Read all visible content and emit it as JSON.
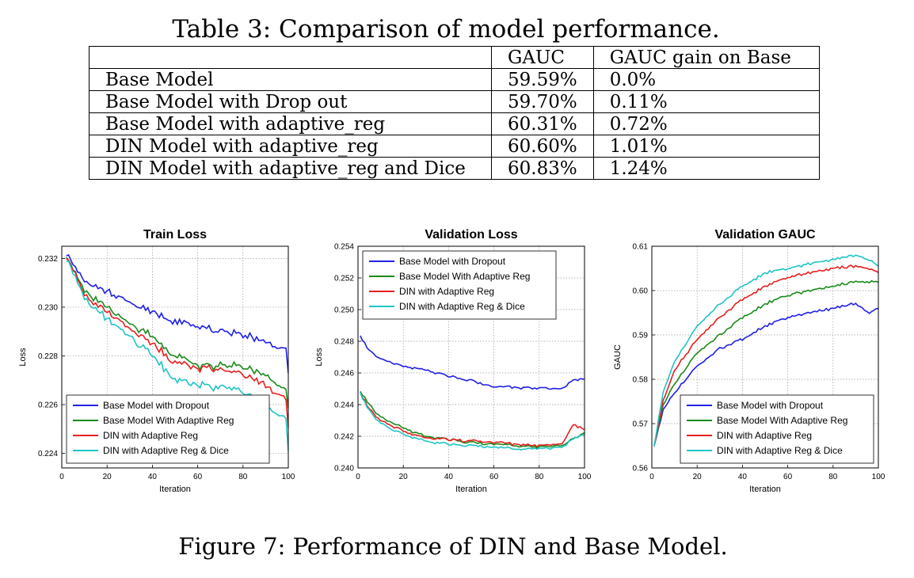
{
  "table": {
    "caption": "Table 3: Comparison of model performance.",
    "headers": [
      "",
      "GAUC",
      "GAUC gain on Base"
    ],
    "rows": [
      [
        "Base Model",
        "59.59%",
        "0.0%"
      ],
      [
        "Base Model with Drop out",
        "59.70%",
        "0.11%"
      ],
      [
        "Base Model with adaptive_reg",
        "60.31%",
        "0.72%"
      ],
      [
        "DIN Model with adaptive_reg",
        "60.60%",
        "1.01%"
      ],
      [
        "DIN Model with adaptive_reg and Dice",
        "60.83%",
        "1.24%"
      ]
    ]
  },
  "figure_caption": "Figure 7: Performance of DIN and Base Model.",
  "colors": {
    "base_dropout": "#1f1fe6",
    "base_adaptive": "#1a8a1a",
    "din_adaptive": "#e61f1f",
    "din_adaptive_dice": "#1fc4c4"
  },
  "chart_data": [
    {
      "type": "line",
      "title": "Train Loss",
      "xlabel": "Iteration",
      "ylabel": "Loss",
      "xlim": [
        0,
        100
      ],
      "ylim": [
        0.2234,
        0.2325
      ],
      "xticks": [
        "0",
        "20",
        "40",
        "60",
        "80",
        "100"
      ],
      "yticks": [
        "0.224",
        "0.226",
        "0.228",
        "0.230",
        "0.232"
      ],
      "grid": true,
      "legend_position": "lower-left",
      "series": [
        {
          "name": "Base Model with Dropout",
          "x": [
            2,
            10,
            20,
            30,
            40,
            50,
            60,
            70,
            80,
            90,
            99,
            100
          ],
          "y": [
            0.2322,
            0.2311,
            0.2306,
            0.2302,
            0.2298,
            0.2294,
            0.2292,
            0.229,
            0.2289,
            0.2286,
            0.2282,
            0.2272
          ]
        },
        {
          "name": "Base Model With Adaptive Reg",
          "x": [
            2,
            10,
            20,
            30,
            40,
            50,
            60,
            70,
            80,
            90,
            99,
            100
          ],
          "y": [
            0.2321,
            0.2307,
            0.23,
            0.2293,
            0.2288,
            0.228,
            0.2276,
            0.2276,
            0.2276,
            0.2272,
            0.2266,
            0.2258
          ]
        },
        {
          "name": "DIN with Adaptive Reg",
          "x": [
            2,
            10,
            20,
            30,
            40,
            50,
            60,
            70,
            80,
            90,
            99,
            100
          ],
          "y": [
            0.2321,
            0.2305,
            0.2298,
            0.2291,
            0.2285,
            0.2277,
            0.2275,
            0.2274,
            0.2273,
            0.2268,
            0.2262,
            0.225
          ]
        },
        {
          "name": "DIN with Adaptive Reg & Dice",
          "x": [
            2,
            10,
            20,
            30,
            40,
            50,
            60,
            70,
            80,
            90,
            99,
            100
          ],
          "y": [
            0.232,
            0.2304,
            0.2295,
            0.2288,
            0.228,
            0.227,
            0.2268,
            0.2267,
            0.2266,
            0.226,
            0.2254,
            0.224
          ]
        }
      ]
    },
    {
      "type": "line",
      "title": "Validation Loss",
      "xlabel": "Iteration",
      "ylabel": "Loss",
      "xlim": [
        0,
        100
      ],
      "ylim": [
        0.24,
        0.254
      ],
      "xticks": [
        "0",
        "20",
        "40",
        "60",
        "80",
        "100"
      ],
      "yticks": [
        "0.240",
        "0.242",
        "0.244",
        "0.246",
        "0.248",
        "0.250",
        "0.252",
        "0.254"
      ],
      "grid": true,
      "legend_position": "upper-left",
      "series": [
        {
          "name": "Base Model with Dropout",
          "x": [
            1,
            5,
            10,
            20,
            30,
            40,
            50,
            60,
            70,
            80,
            90,
            95,
            100
          ],
          "y": [
            0.2483,
            0.2474,
            0.2469,
            0.2464,
            0.2462,
            0.2458,
            0.2455,
            0.2451,
            0.2451,
            0.245,
            0.245,
            0.2455,
            0.2456
          ]
        },
        {
          "name": "Base Model With Adaptive Reg",
          "x": [
            1,
            5,
            10,
            20,
            30,
            40,
            50,
            60,
            70,
            80,
            90,
            95,
            100
          ],
          "y": [
            0.2448,
            0.244,
            0.2432,
            0.2425,
            0.242,
            0.2418,
            0.2416,
            0.2415,
            0.2414,
            0.2413,
            0.2414,
            0.2418,
            0.2422
          ]
        },
        {
          "name": "DIN with Adaptive Reg",
          "x": [
            1,
            5,
            10,
            20,
            30,
            40,
            50,
            60,
            70,
            80,
            90,
            95,
            100
          ],
          "y": [
            0.2447,
            0.2437,
            0.243,
            0.2423,
            0.2419,
            0.2418,
            0.2417,
            0.2416,
            0.2415,
            0.2414,
            0.2415,
            0.2427,
            0.2424
          ]
        },
        {
          "name": "DIN with Adaptive Reg & Dice",
          "x": [
            1,
            5,
            10,
            20,
            30,
            40,
            50,
            60,
            70,
            80,
            90,
            95,
            100
          ],
          "y": [
            0.2447,
            0.2436,
            0.2428,
            0.2421,
            0.2417,
            0.2415,
            0.2414,
            0.2413,
            0.2412,
            0.2412,
            0.2413,
            0.2418,
            0.2421
          ]
        }
      ]
    },
    {
      "type": "line",
      "title": "Validation GAUC",
      "xlabel": "Iteration",
      "ylabel": "GAUC",
      "xlim": [
        0,
        100
      ],
      "ylim": [
        0.56,
        0.61
      ],
      "xticks": [
        "0",
        "20",
        "40",
        "60",
        "80",
        "100"
      ],
      "yticks": [
        "0.56",
        "0.57",
        "0.58",
        "0.59",
        "0.60",
        "0.61"
      ],
      "grid": true,
      "legend_position": "lower-right",
      "series": [
        {
          "name": "Base Model with Dropout",
          "x": [
            1,
            5,
            10,
            20,
            30,
            40,
            50,
            60,
            70,
            80,
            90,
            96,
            100
          ],
          "y": [
            0.565,
            0.573,
            0.577,
            0.583,
            0.587,
            0.589,
            0.592,
            0.594,
            0.595,
            0.596,
            0.597,
            0.595,
            0.596
          ]
        },
        {
          "name": "Base Model With Adaptive Reg",
          "x": [
            1,
            5,
            10,
            20,
            30,
            40,
            50,
            60,
            70,
            80,
            90,
            96,
            100
          ],
          "y": [
            0.565,
            0.574,
            0.579,
            0.586,
            0.59,
            0.594,
            0.597,
            0.599,
            0.6,
            0.601,
            0.602,
            0.602,
            0.602
          ]
        },
        {
          "name": "DIN with Adaptive Reg",
          "x": [
            1,
            5,
            10,
            20,
            30,
            40,
            50,
            60,
            70,
            80,
            90,
            96,
            100
          ],
          "y": [
            0.565,
            0.575,
            0.582,
            0.589,
            0.594,
            0.598,
            0.601,
            0.603,
            0.604,
            0.605,
            0.6055,
            0.605,
            0.604
          ]
        },
        {
          "name": "DIN with Adaptive Reg & Dice",
          "x": [
            1,
            5,
            10,
            20,
            30,
            40,
            50,
            60,
            70,
            80,
            90,
            96,
            100
          ],
          "y": [
            0.565,
            0.577,
            0.584,
            0.592,
            0.597,
            0.601,
            0.604,
            0.605,
            0.606,
            0.607,
            0.608,
            0.607,
            0.6055
          ]
        }
      ]
    }
  ]
}
